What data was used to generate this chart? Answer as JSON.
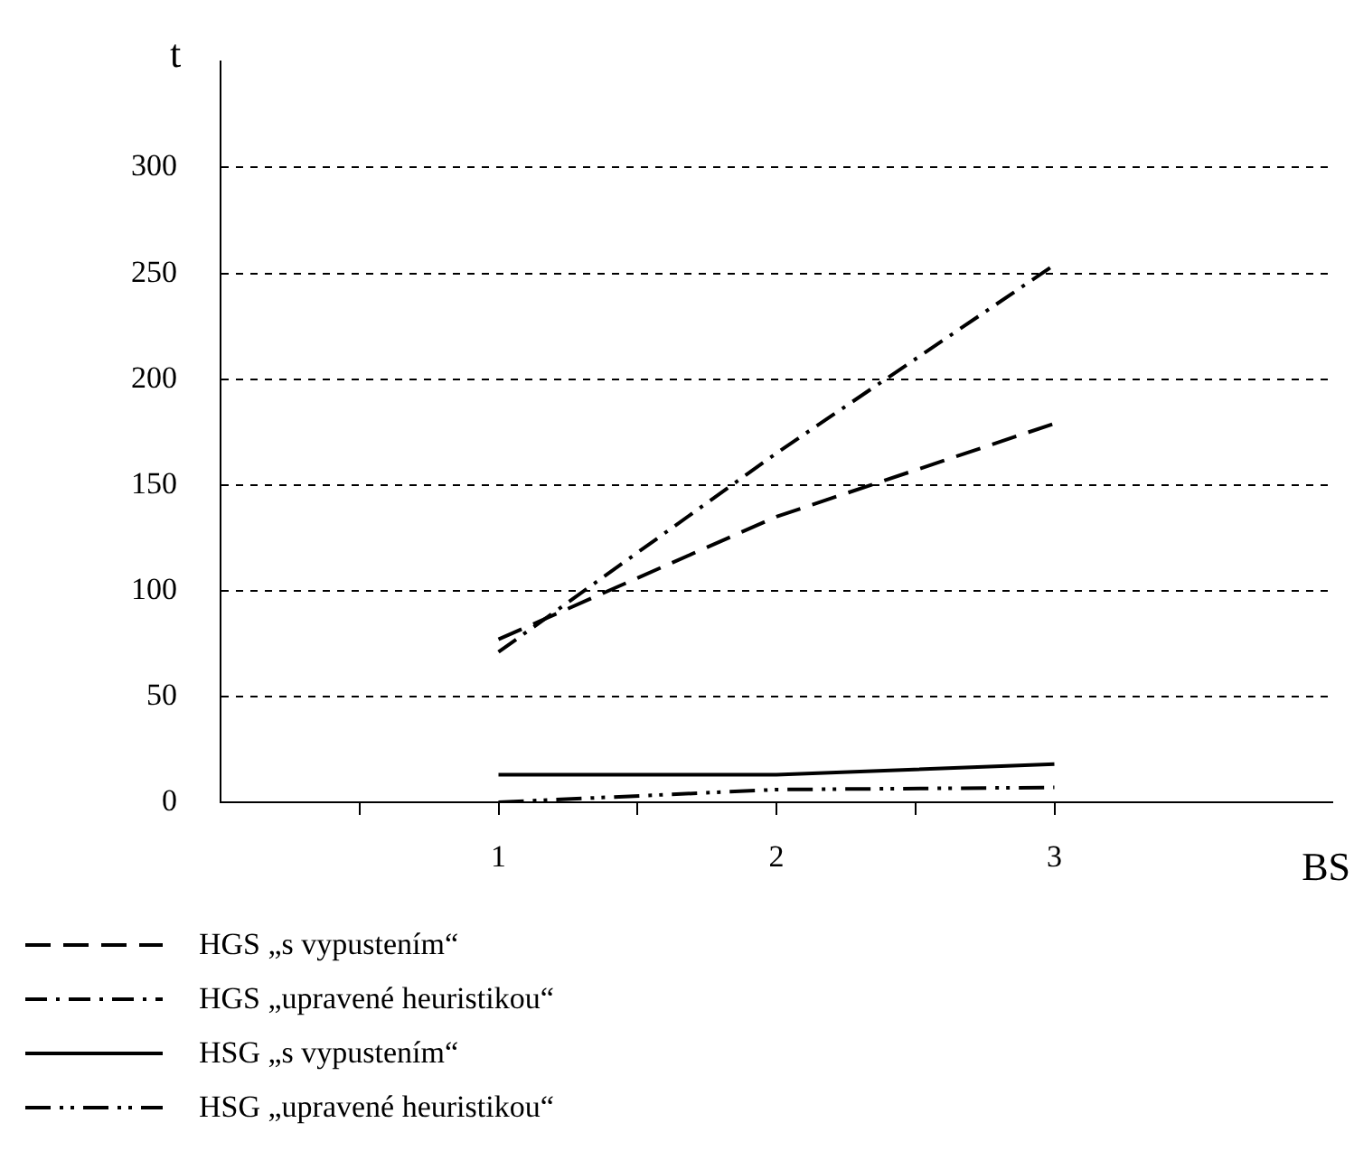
{
  "chart_data": {
    "type": "line",
    "xlabel": "BS",
    "ylabel": "t",
    "x": [
      1,
      2,
      3
    ],
    "xlim": [
      0,
      4
    ],
    "xticks": [
      {
        "value": 0.5,
        "label": null
      },
      1,
      {
        "value": 1.5,
        "label": null
      },
      2,
      {
        "value": 2.5,
        "label": null
      },
      3
    ],
    "ylim": [
      0,
      350
    ],
    "yticks": [
      0,
      50,
      100,
      150,
      200,
      250,
      300
    ],
    "grid": "y",
    "legend": "bottom left",
    "marker": "none",
    "series": [
      {
        "name": "HGS „s vypustením“",
        "color": "#000000",
        "line_style": "dashed",
        "values": [
          77,
          135,
          179
        ]
      },
      {
        "name": "HGS „upravené heuristikou“",
        "color": "#000000",
        "line_style": "dashdot",
        "values": [
          71,
          165,
          254
        ]
      },
      {
        "name": "HSG „s vypustením“",
        "color": "#000000",
        "line_style": "solid",
        "values": [
          13,
          13,
          18
        ]
      },
      {
        "name": "HSG „upravené heuristikou“",
        "color": "#000000",
        "line_style": "dashdotdot",
        "values": [
          0,
          6,
          7
        ]
      }
    ]
  }
}
